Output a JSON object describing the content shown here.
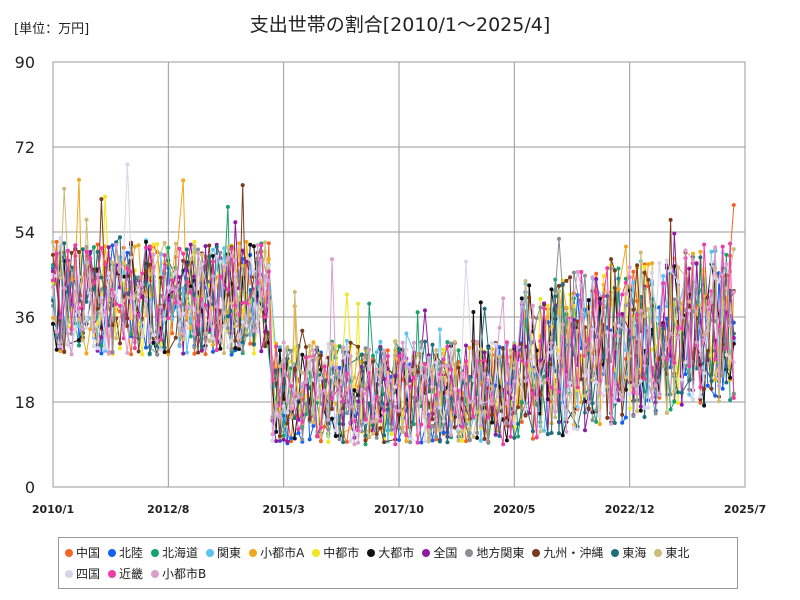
{
  "unit_label": "[単位：万円]",
  "chart_data": {
    "type": "line",
    "title": "支出世帯の割合[2010/1～2025/4]",
    "xlabel": "",
    "ylabel": "",
    "ylim": [
      0,
      90
    ],
    "yticks": [
      "0",
      "18",
      "36",
      "54",
      "72",
      "90"
    ],
    "xlim": [
      "2010-01",
      "2025-07"
    ],
    "xticks": [
      {
        "label": "2010/1",
        "date": "2010-01"
      },
      {
        "label": "2012/8",
        "date": "2012-08"
      },
      {
        "label": "2015/3",
        "date": "2015-03"
      },
      {
        "label": "2017/10",
        "date": "2017-10"
      },
      {
        "label": "2020/5",
        "date": "2020-05"
      },
      {
        "label": "2022/12",
        "date": "2022-12"
      },
      {
        "label": "2025/7",
        "date": "2025-07"
      }
    ],
    "grid": true,
    "legend_position": "bottom",
    "series": [
      {
        "name": "中国",
        "color": "#f26522"
      },
      {
        "name": "北陸",
        "color": "#1560f0"
      },
      {
        "name": "北海道",
        "color": "#16a26a"
      },
      {
        "name": "関東",
        "color": "#5bc3f0"
      },
      {
        "name": "小都市A",
        "color": "#f0a81e"
      },
      {
        "name": "中都市",
        "color": "#f2e61e"
      },
      {
        "name": "大都市",
        "color": "#111111"
      },
      {
        "name": "全国",
        "color": "#8e1aa0"
      },
      {
        "name": "地方関東",
        "color": "#8a8f96"
      },
      {
        "name": "九州・沖縄",
        "color": "#7a3b1f"
      },
      {
        "name": "東海",
        "color": "#1f6f7a"
      },
      {
        "name": "東北",
        "color": "#cdbb7a"
      },
      {
        "name": "四国",
        "color": "#d9d4ec"
      },
      {
        "name": "近畿",
        "color": "#ee3ca8"
      },
      {
        "name": "小都市B",
        "color": "#d9a0cc"
      }
    ]
  }
}
